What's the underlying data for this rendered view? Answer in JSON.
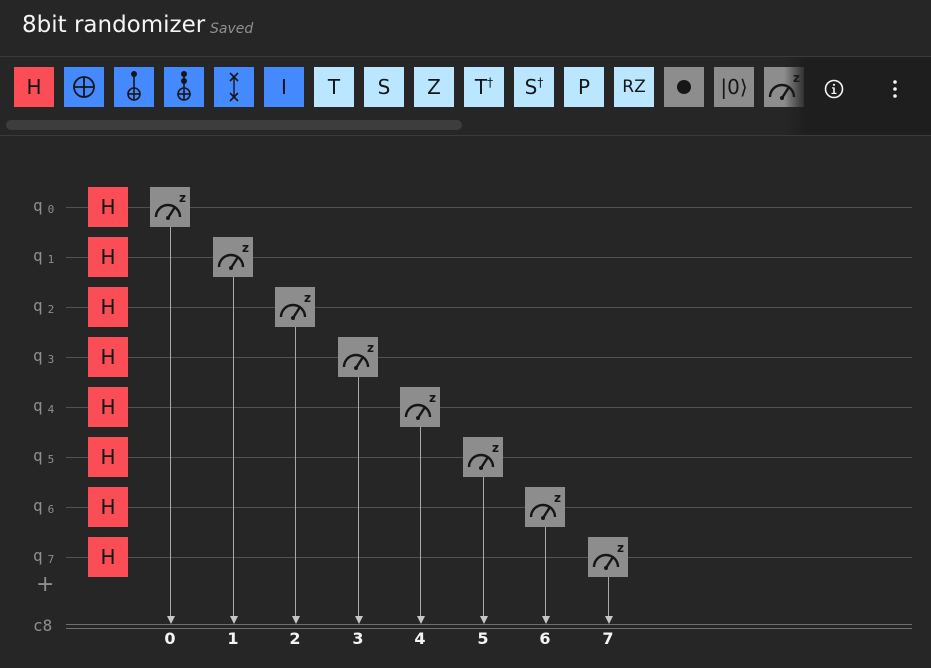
{
  "app": {
    "title": "8bit randomizer",
    "status": "Saved"
  },
  "toolbar": {
    "gates": [
      {
        "label": "H",
        "kind": "text",
        "color": "red",
        "name": "gate-h"
      },
      {
        "label": "",
        "kind": "cnot",
        "color": "blue",
        "name": "gate-cnot"
      },
      {
        "label": "",
        "kind": "ccnot",
        "color": "blue",
        "name": "gate-toffoli"
      },
      {
        "label": "",
        "kind": "cccnot",
        "color": "blue",
        "name": "gate-multi-cnot"
      },
      {
        "label": "",
        "kind": "swap",
        "color": "blue",
        "name": "gate-swap"
      },
      {
        "label": "I",
        "kind": "text",
        "color": "blue",
        "name": "gate-i"
      },
      {
        "label": "T",
        "kind": "text",
        "color": "light",
        "name": "gate-t"
      },
      {
        "label": "S",
        "kind": "text",
        "color": "light",
        "name": "gate-s"
      },
      {
        "label": "Z",
        "kind": "text",
        "color": "light",
        "name": "gate-z"
      },
      {
        "label": "T†",
        "kind": "text",
        "color": "light",
        "name": "gate-t-dagger"
      },
      {
        "label": "S†",
        "kind": "text",
        "color": "light",
        "name": "gate-s-dagger"
      },
      {
        "label": "P",
        "kind": "text",
        "color": "light",
        "name": "gate-p"
      },
      {
        "label": "RZ",
        "kind": "text",
        "color": "light",
        "name": "gate-rz"
      },
      {
        "label": "",
        "kind": "dot",
        "color": "gray",
        "name": "gate-barrier"
      },
      {
        "label": "|0⟩",
        "kind": "text",
        "color": "gray",
        "name": "gate-reset"
      },
      {
        "label": "",
        "kind": "measure",
        "color": "gray",
        "name": "gate-measure"
      }
    ],
    "info_icon": "info-icon",
    "more_icon": "overflow-menu-icon"
  },
  "circuit": {
    "qubits": [
      {
        "label": "q",
        "index": "0"
      },
      {
        "label": "q",
        "index": "1"
      },
      {
        "label": "q",
        "index": "2"
      },
      {
        "label": "q",
        "index": "3"
      },
      {
        "label": "q",
        "index": "4"
      },
      {
        "label": "q",
        "index": "5"
      },
      {
        "label": "q",
        "index": "6"
      },
      {
        "label": "q",
        "index": "7"
      }
    ],
    "gate_label": "H",
    "measure_label": "z",
    "add_qubit": "+",
    "classical_register": "c8",
    "classical_bits": [
      "0",
      "1",
      "2",
      "3",
      "4",
      "5",
      "6",
      "7"
    ]
  }
}
